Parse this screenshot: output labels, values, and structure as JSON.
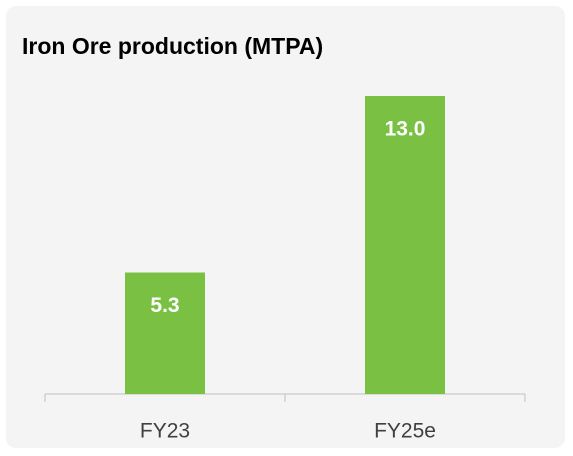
{
  "chart_data": {
    "type": "bar",
    "title": "Iron Ore production (MTPA)",
    "categories": [
      "FY23",
      "FY25e"
    ],
    "values": [
      5.3,
      13.0
    ],
    "value_labels": [
      "5.3",
      "13.0"
    ],
    "color": "#7ac143"
  }
}
